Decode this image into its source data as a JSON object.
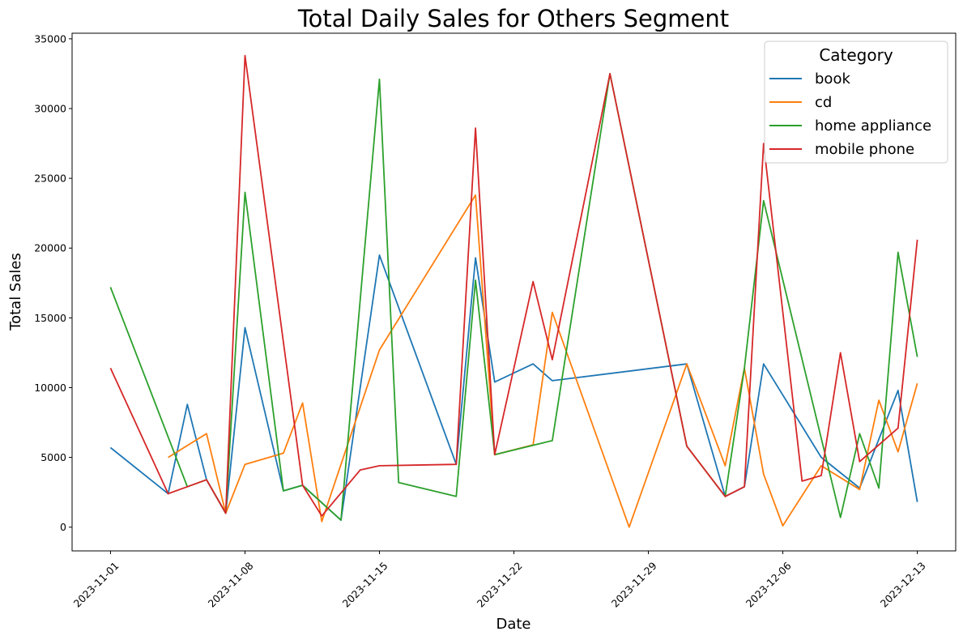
{
  "chart_data": {
    "type": "line",
    "title": "Total Daily Sales for Others Segment",
    "xlabel": "Date",
    "ylabel": "Total Sales",
    "x_axis_type": "date",
    "xlim": [
      "2023-10-30",
      "2023-12-15"
    ],
    "ylim": [
      -1700,
      35400
    ],
    "x_ticks": [
      "2023-11-01",
      "2023-11-08",
      "2023-11-15",
      "2023-11-22",
      "2023-11-29",
      "2023-12-06",
      "2023-12-13"
    ],
    "y_ticks": [
      0,
      5000,
      10000,
      15000,
      20000,
      25000,
      30000,
      35000
    ],
    "grid": false,
    "legend": {
      "title": "Category",
      "placement": "upper right"
    },
    "colors": {
      "book": "#1f77b4",
      "cd": "#ff7f0e",
      "home appliance": "#2ca02c",
      "mobile phone": "#d62728"
    },
    "series": [
      {
        "name": "book",
        "points": [
          [
            "2023-11-01",
            5700
          ],
          [
            "2023-11-04",
            2400
          ],
          [
            "2023-11-05",
            8800
          ],
          [
            "2023-11-06",
            3400
          ],
          [
            "2023-11-07",
            1000
          ],
          [
            "2023-11-08",
            14300
          ],
          [
            "2023-11-10",
            2600
          ],
          [
            "2023-11-11",
            3000
          ],
          [
            "2023-11-13",
            500
          ],
          [
            "2023-11-15",
            19500
          ],
          [
            "2023-11-19",
            4500
          ],
          [
            "2023-11-20",
            19300
          ],
          [
            "2023-11-21",
            10400
          ],
          [
            "2023-11-23",
            11700
          ],
          [
            "2023-11-24",
            10500
          ],
          [
            "2023-12-01",
            11700
          ],
          [
            "2023-12-03",
            2200
          ],
          [
            "2023-12-04",
            2900
          ],
          [
            "2023-12-05",
            11700
          ],
          [
            "2023-12-08",
            5000
          ],
          [
            "2023-12-10",
            2800
          ],
          [
            "2023-12-12",
            9800
          ],
          [
            "2023-12-13",
            1800
          ]
        ]
      },
      {
        "name": "cd",
        "points": [
          [
            "2023-11-04",
            5000
          ],
          [
            "2023-11-06",
            6700
          ],
          [
            "2023-11-07",
            1000
          ],
          [
            "2023-11-08",
            4500
          ],
          [
            "2023-11-10",
            5300
          ],
          [
            "2023-11-11",
            8900
          ],
          [
            "2023-11-12",
            400
          ],
          [
            "2023-11-15",
            12700
          ],
          [
            "2023-11-20",
            23800
          ],
          [
            "2023-11-21",
            5200
          ],
          [
            "2023-11-23",
            5900
          ],
          [
            "2023-11-24",
            15400
          ],
          [
            "2023-11-28",
            0
          ],
          [
            "2023-12-01",
            11700
          ],
          [
            "2023-12-03",
            4400
          ],
          [
            "2023-12-04",
            11400
          ],
          [
            "2023-12-05",
            3800
          ],
          [
            "2023-12-06",
            100
          ],
          [
            "2023-12-08",
            4400
          ],
          [
            "2023-12-10",
            2700
          ],
          [
            "2023-12-11",
            9100
          ],
          [
            "2023-12-12",
            5400
          ],
          [
            "2023-12-13",
            10300
          ]
        ]
      },
      {
        "name": "home appliance",
        "points": [
          [
            "2023-11-01",
            17200
          ],
          [
            "2023-11-05",
            2900
          ],
          [
            "2023-11-06",
            3400
          ],
          [
            "2023-11-07",
            1000
          ],
          [
            "2023-11-08",
            24000
          ],
          [
            "2023-11-10",
            2600
          ],
          [
            "2023-11-11",
            3000
          ],
          [
            "2023-11-13",
            500
          ],
          [
            "2023-11-15",
            32100
          ],
          [
            "2023-11-16",
            3200
          ],
          [
            "2023-11-19",
            2200
          ],
          [
            "2023-11-20",
            17700
          ],
          [
            "2023-11-21",
            5200
          ],
          [
            "2023-11-24",
            6200
          ],
          [
            "2023-11-27",
            32500
          ],
          [
            "2023-12-01",
            5800
          ],
          [
            "2023-12-03",
            2200
          ],
          [
            "2023-12-04",
            11400
          ],
          [
            "2023-12-05",
            23400
          ],
          [
            "2023-12-09",
            700
          ],
          [
            "2023-12-10",
            6700
          ],
          [
            "2023-12-11",
            2800
          ],
          [
            "2023-12-12",
            19700
          ],
          [
            "2023-12-13",
            12200
          ]
        ]
      },
      {
        "name": "mobile phone",
        "points": [
          [
            "2023-11-01",
            11400
          ],
          [
            "2023-11-04",
            2400
          ],
          [
            "2023-11-05",
            2900
          ],
          [
            "2023-11-06",
            3400
          ],
          [
            "2023-11-07",
            1000
          ],
          [
            "2023-11-08",
            33800
          ],
          [
            "2023-11-11",
            3000
          ],
          [
            "2023-11-12",
            800
          ],
          [
            "2023-11-14",
            4100
          ],
          [
            "2023-11-15",
            4400
          ],
          [
            "2023-11-19",
            4500
          ],
          [
            "2023-11-20",
            28600
          ],
          [
            "2023-11-21",
            5200
          ],
          [
            "2023-11-23",
            17600
          ],
          [
            "2023-11-24",
            12000
          ],
          [
            "2023-11-27",
            32500
          ],
          [
            "2023-12-01",
            5800
          ],
          [
            "2023-12-03",
            2200
          ],
          [
            "2023-12-04",
            2900
          ],
          [
            "2023-12-05",
            27500
          ],
          [
            "2023-12-07",
            3300
          ],
          [
            "2023-12-08",
            3700
          ],
          [
            "2023-12-09",
            12500
          ],
          [
            "2023-12-10",
            4700
          ],
          [
            "2023-12-12",
            7100
          ],
          [
            "2023-12-13",
            20600
          ]
        ]
      }
    ]
  }
}
